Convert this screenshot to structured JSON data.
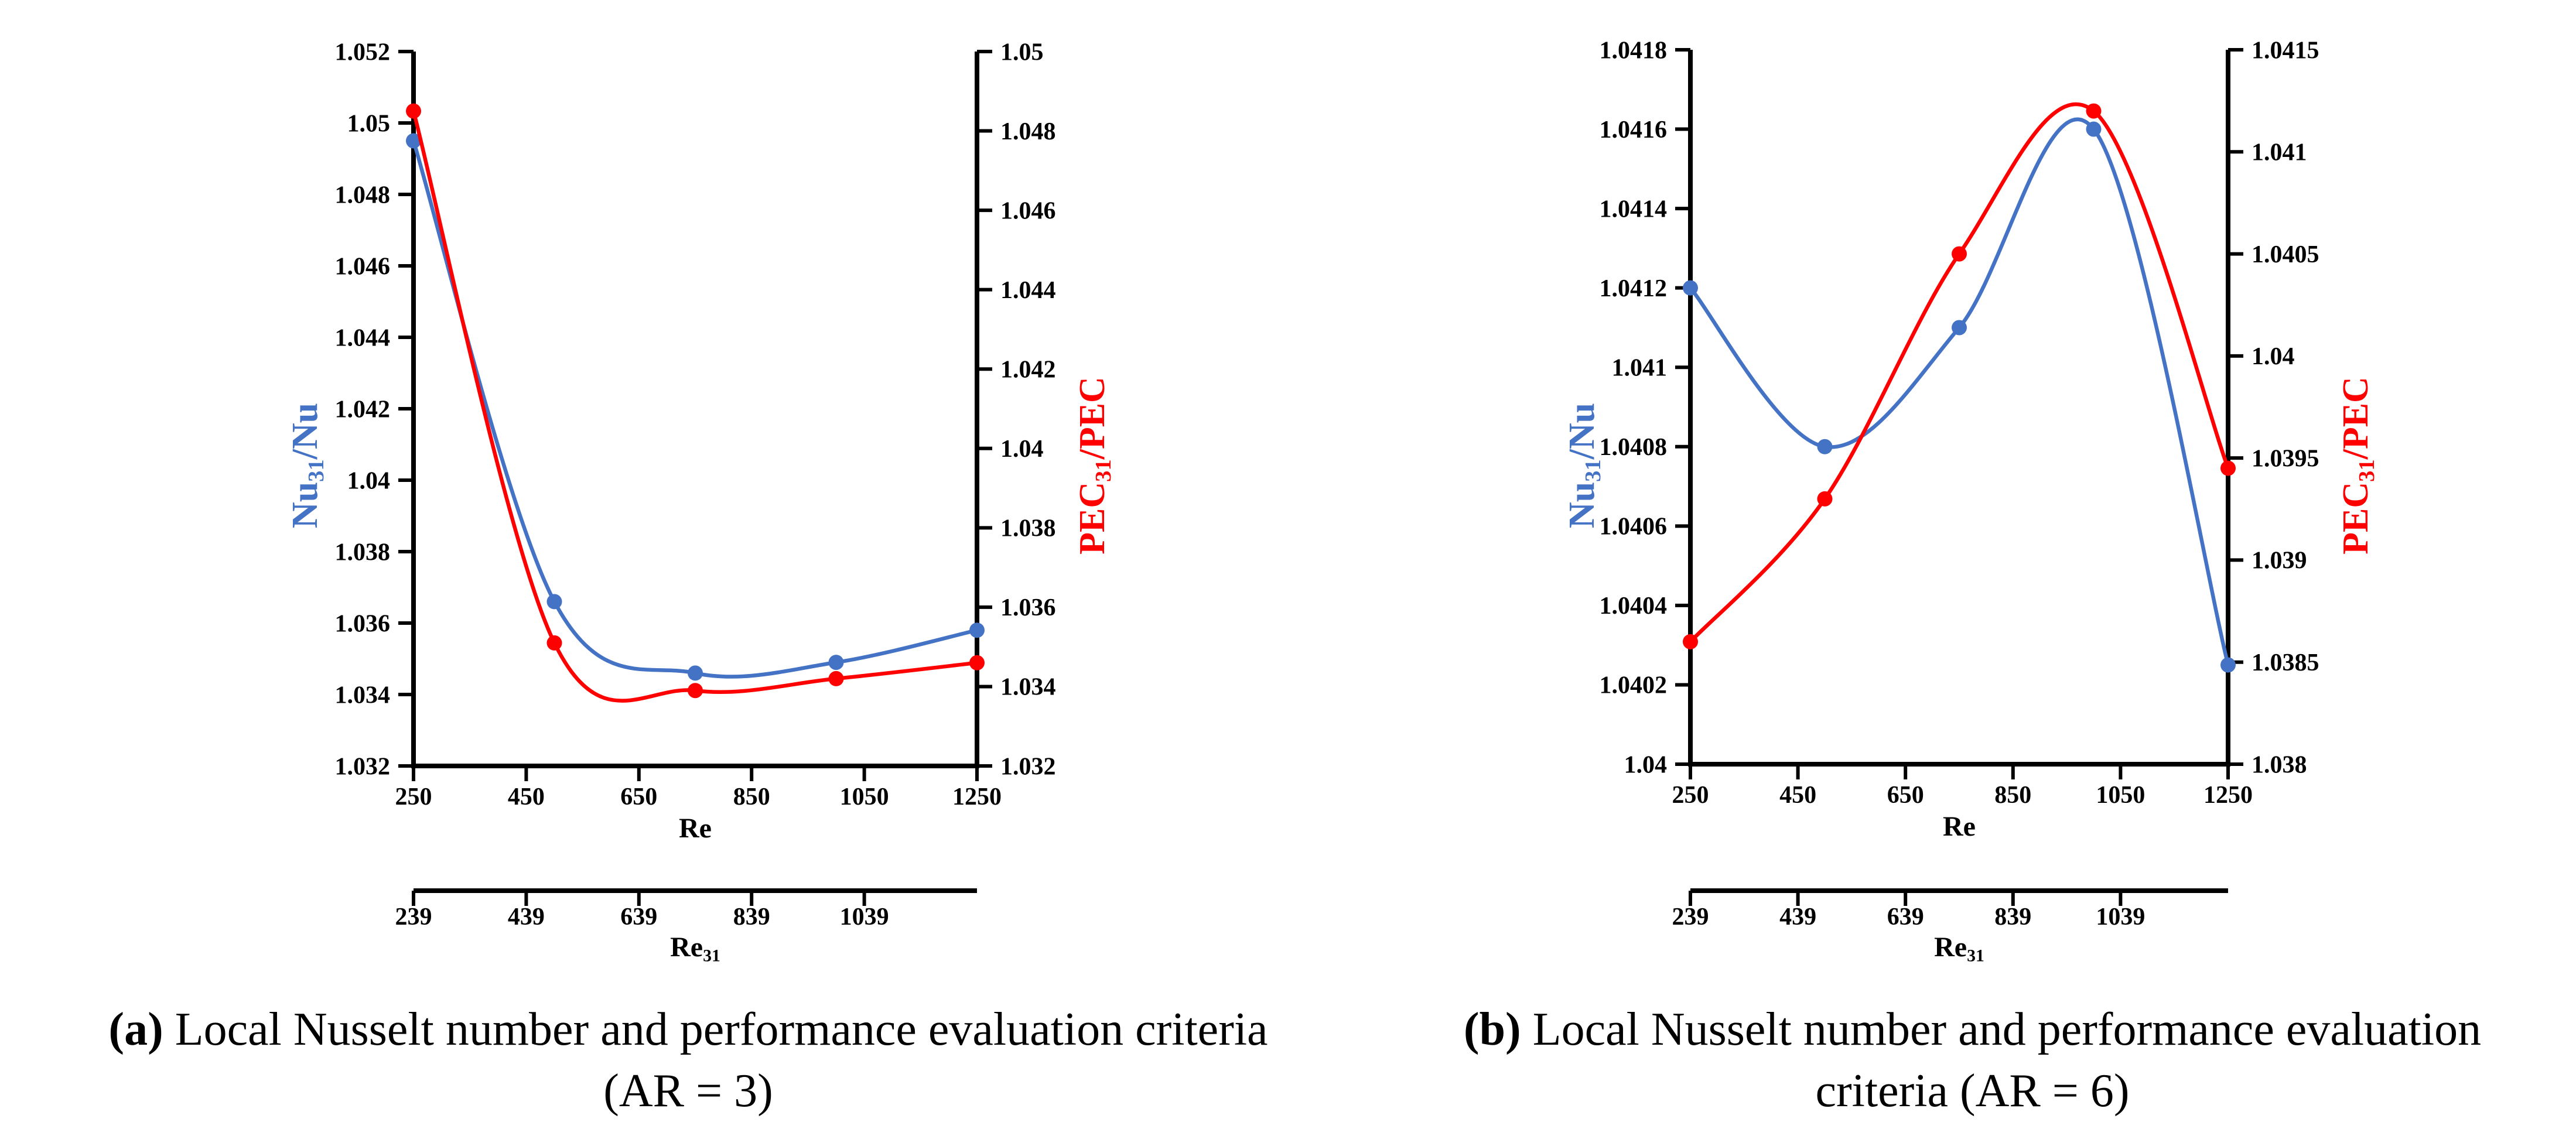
{
  "figure": {
    "captions": {
      "a": {
        "label": "(a)",
        "text": "Local Nusselt number and performance evaluation criteria",
        "line2": "(AR = 3)"
      },
      "b": {
        "label": "(b)",
        "text": "Local Nusselt number and performance evaluation",
        "line2": "criteria (AR = 6)"
      }
    }
  },
  "chart_data": [
    {
      "type": "line",
      "panel": "a",
      "smooth": true,
      "grid": false,
      "legend": false,
      "x": [
        250,
        500,
        750,
        1000,
        1250
      ],
      "x_axis": {
        "label": "Re",
        "ticks": [
          "250",
          "450",
          "650",
          "850",
          "1050",
          "1250"
        ],
        "range": [
          250,
          1250
        ]
      },
      "x2_axis": {
        "label": "Re_{31}",
        "ticks": [
          "239",
          "439",
          "639",
          "839",
          "1039"
        ],
        "range": [
          239,
          1239
        ]
      },
      "y_left": {
        "label": "Nu_{31}/Nu",
        "color": "#4472c4",
        "range": [
          1.032,
          1.052
        ],
        "ticks": [
          "1.032",
          "1.034",
          "1.036",
          "1.038",
          "1.04",
          "1.042",
          "1.044",
          "1.046",
          "1.048",
          "1.05",
          "1.052"
        ]
      },
      "y_right": {
        "label": "PEC_{31}/PEC",
        "color": "#ff0000",
        "range": [
          1.032,
          1.05
        ],
        "ticks": [
          "1.032",
          "1.034",
          "1.036",
          "1.038",
          "1.04",
          "1.042",
          "1.044",
          "1.046",
          "1.048",
          "1.05"
        ]
      },
      "series": [
        {
          "name": "Nu_{31}/Nu",
          "axis": "left",
          "color": "#4472c4",
          "marker": "circle",
          "values": [
            1.0495,
            1.0366,
            1.0346,
            1.0349,
            1.0358
          ]
        },
        {
          "name": "PEC_{31}/PEC",
          "axis": "right",
          "color": "#ff0000",
          "marker": "circle",
          "values": [
            1.0485,
            1.0351,
            1.0339,
            1.0342,
            1.0346
          ]
        }
      ]
    },
    {
      "type": "line",
      "panel": "b",
      "smooth": true,
      "grid": false,
      "legend": false,
      "x": [
        250,
        500,
        750,
        1000,
        1250
      ],
      "x_axis": {
        "label": "Re",
        "ticks": [
          "250",
          "450",
          "650",
          "850",
          "1050",
          "1250"
        ],
        "range": [
          250,
          1250
        ]
      },
      "x2_axis": {
        "label": "Re_{31}",
        "ticks": [
          "239",
          "439",
          "639",
          "839",
          "1039"
        ],
        "range": [
          239,
          1239
        ]
      },
      "y_left": {
        "label": "Nu_{31}/Nu",
        "color": "#4472c4",
        "range": [
          1.04,
          1.0418
        ],
        "ticks": [
          "1.04",
          "1.0402",
          "1.0404",
          "1.0406",
          "1.0408",
          "1.041",
          "1.0412",
          "1.0414",
          "1.0416",
          "1.0418"
        ]
      },
      "y_right": {
        "label": "PEC_{31}/PEC",
        "color": "#ff0000",
        "range": [
          1.038,
          1.0415
        ],
        "ticks": [
          "1.038",
          "1.0385",
          "1.039",
          "1.0395",
          "1.04",
          "1.0405",
          "1.041",
          "1.0415"
        ]
      },
      "series": [
        {
          "name": "Nu_{31}/Nu",
          "axis": "left",
          "color": "#4472c4",
          "marker": "circle",
          "values": [
            1.0412,
            1.0408,
            1.0411,
            1.0416,
            1.04025
          ]
        },
        {
          "name": "PEC_{31}/PEC",
          "axis": "right",
          "color": "#ff0000",
          "marker": "circle",
          "values": [
            1.0386,
            1.0393,
            1.0405,
            1.0412,
            1.03945
          ]
        }
      ]
    }
  ]
}
